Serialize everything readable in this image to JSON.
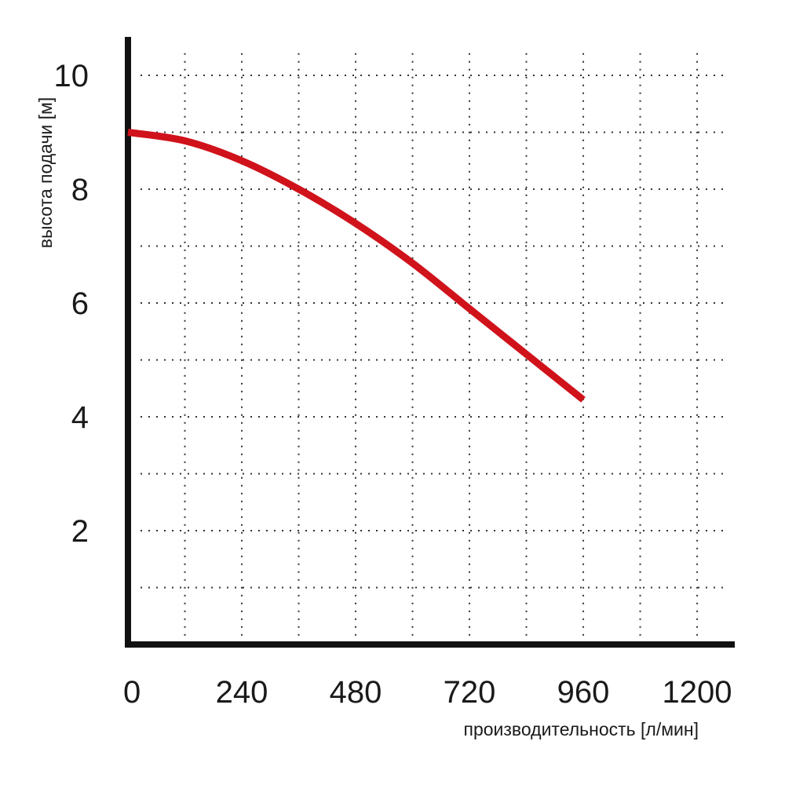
{
  "chart_data": {
    "type": "line",
    "title": "",
    "xlabel": "производительность [л/мин]",
    "ylabel": "высота подачи [м]",
    "x_ticks": [
      "0",
      "240",
      "480",
      "720",
      "960",
      "1200"
    ],
    "y_ticks": [
      "2",
      "4",
      "6",
      "8",
      "10"
    ],
    "xlim": [
      0,
      1280
    ],
    "ylim": [
      0,
      10.5
    ],
    "grid": true,
    "series": [
      {
        "color": "#d0121b",
        "x": [
          0,
          120,
          240,
          360,
          480,
          600,
          720,
          840,
          960
        ],
        "y": [
          9.0,
          8.85,
          8.5,
          8.0,
          7.4,
          6.7,
          5.9,
          5.1,
          4.3
        ]
      }
    ]
  }
}
